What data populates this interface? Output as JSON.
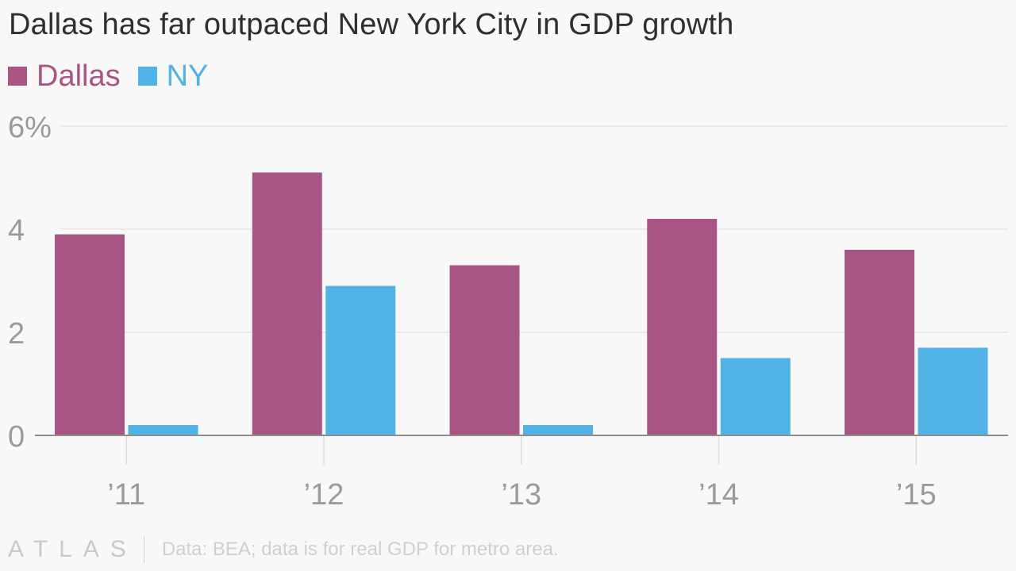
{
  "chart_data": {
    "type": "bar",
    "title": "Dallas has far outpaced New York City in GDP growth",
    "categories": [
      "’11",
      "’12",
      "’13",
      "’14",
      "’15"
    ],
    "series": [
      {
        "name": "Dallas",
        "color": "#a85585",
        "values": [
          3.9,
          5.1,
          3.3,
          4.2,
          3.6
        ]
      },
      {
        "name": "NY",
        "color": "#51b2e5",
        "values": [
          0.2,
          2.9,
          0.2,
          1.5,
          1.7
        ]
      }
    ],
    "yticks": [
      {
        "value": 0,
        "label": "0"
      },
      {
        "value": 2,
        "label": "2"
      },
      {
        "value": 4,
        "label": "4"
      },
      {
        "value": 6,
        "label": "6%"
      }
    ],
    "ylim": [
      0,
      6
    ],
    "xlabel": "",
    "ylabel": "",
    "grid": true,
    "legend_position": "top-left"
  },
  "footer": {
    "brand": "ATLAS",
    "source": "Data: BEA; data is for real GDP for metro area."
  }
}
